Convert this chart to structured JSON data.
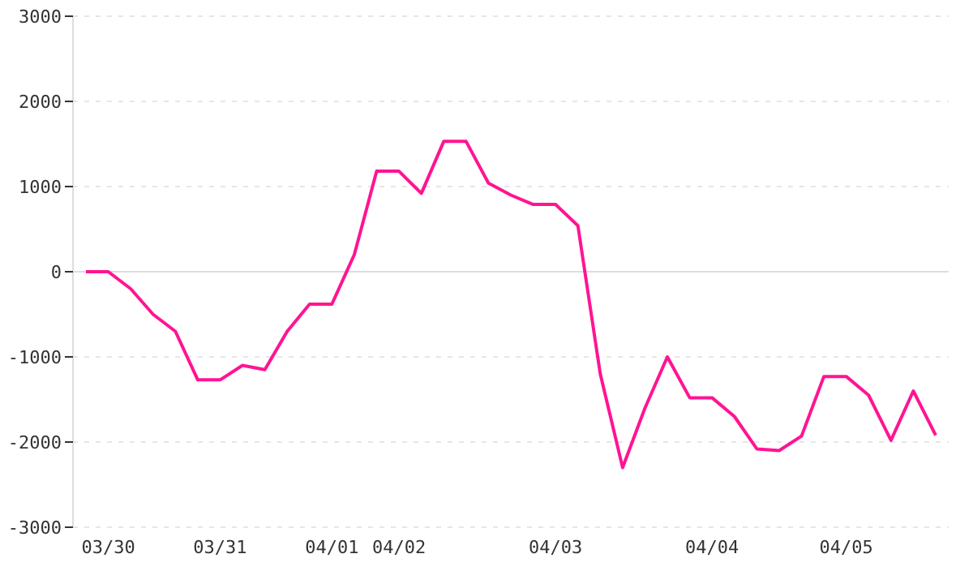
{
  "chart_data": {
    "type": "line",
    "categories": [
      null,
      "03/30",
      null,
      null,
      null,
      null,
      "03/31",
      null,
      null,
      null,
      null,
      "04/01",
      null,
      null,
      "04/02",
      null,
      null,
      null,
      null,
      null,
      null,
      "04/03",
      null,
      null,
      null,
      null,
      null,
      null,
      "04/04",
      null,
      null,
      null,
      null,
      null,
      "04/05",
      null,
      null,
      null,
      null
    ],
    "series": [
      {
        "color": "#ff1493",
        "values": [
          0,
          0,
          -200,
          -500,
          -700,
          -1270,
          -1270,
          -1100,
          -1150,
          -700,
          -380,
          -380,
          200,
          1180,
          1180,
          920,
          1530,
          1530,
          1040,
          900,
          790,
          790,
          540,
          -1200,
          -2300,
          -1600,
          -1000,
          -1480,
          -1480,
          -1700,
          -2080,
          -2100,
          -1930,
          -1230,
          -1230,
          -1450,
          -1980,
          -1400,
          -1920
        ]
      }
    ],
    "ylim": [
      -3000,
      3000
    ],
    "yticks": [
      -3000,
      -2000,
      -1000,
      0,
      1000,
      2000,
      3000
    ],
    "grid": "y",
    "legend": false,
    "marker": "none",
    "line_style": "solid",
    "ref_lines": [
      {
        "axis": "y",
        "value": 0,
        "color": "#dddddd"
      }
    ]
  }
}
